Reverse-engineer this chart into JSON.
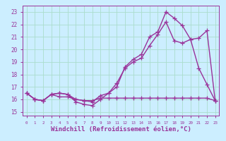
{
  "background_color": "#cceeff",
  "grid_color": "#aaddcc",
  "line_color": "#993399",
  "marker": "+",
  "markersize": 4,
  "linewidth": 1.0,
  "xlabel": "Windchill (Refroidissement éolien,°C)",
  "xlabel_fontsize": 6.5,
  "ylabel_ticks": [
    15,
    16,
    17,
    18,
    19,
    20,
    21,
    22,
    23
  ],
  "xtick_labels": [
    "0",
    "1",
    "2",
    "3",
    "4",
    "5",
    "6",
    "7",
    "8",
    "9",
    "10",
    "11",
    "12",
    "13",
    "14",
    "15",
    "16",
    "17",
    "18",
    "19",
    "20",
    "21",
    "22",
    "23"
  ],
  "ylim": [
    14.7,
    23.5
  ],
  "xlim": [
    -0.5,
    23.5
  ],
  "series": [
    [
      16.5,
      16.0,
      15.9,
      16.4,
      16.5,
      16.4,
      15.8,
      15.6,
      15.5,
      16.0,
      16.5,
      17.3,
      18.5,
      19.0,
      19.3,
      20.3,
      21.2,
      22.2,
      20.7,
      20.5,
      20.8,
      18.5,
      17.2,
      15.9
    ],
    [
      16.5,
      16.0,
      15.9,
      16.4,
      16.2,
      16.2,
      16.0,
      15.9,
      15.9,
      16.1,
      16.1,
      16.1,
      16.1,
      16.1,
      16.1,
      16.1,
      16.1,
      16.1,
      16.1,
      16.1,
      16.1,
      16.1,
      16.1,
      15.9
    ],
    [
      16.5,
      16.0,
      15.9,
      16.4,
      16.5,
      16.4,
      16.0,
      15.9,
      15.8,
      16.3,
      16.5,
      17.0,
      18.6,
      19.2,
      19.6,
      21.0,
      21.4,
      23.0,
      22.5,
      21.9,
      20.8,
      20.9,
      21.5,
      15.9
    ]
  ]
}
